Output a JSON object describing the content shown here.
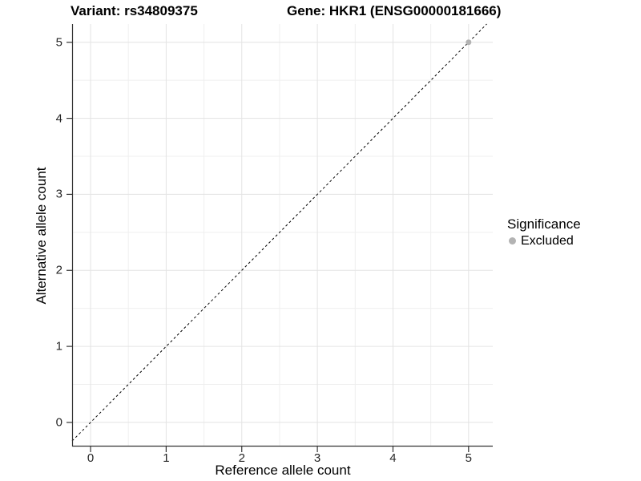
{
  "chart_data": {
    "type": "scatter",
    "title_left": "Variant: rs34809375",
    "title_right": "Gene: HKR1 (ENSG00000181666)",
    "xlabel": "Reference allele count",
    "ylabel": "Alternative allele count",
    "xticks": [
      0,
      1,
      2,
      3,
      4,
      5
    ],
    "yticks": [
      0,
      1,
      2,
      3,
      4,
      5
    ],
    "x_minor": [
      0.5,
      1.5,
      2.5,
      3.5,
      4.5
    ],
    "y_minor": [
      0.5,
      1.5,
      2.5,
      3.5,
      4.5
    ],
    "xlim": [
      -0.244,
      5.32
    ],
    "ylim": [
      -0.317,
      5.24
    ],
    "grid": true,
    "points": [
      {
        "x": 5,
        "y": 5,
        "series": "Excluded"
      }
    ],
    "reference_line": {
      "equation": "y = x",
      "style": "dashed",
      "color": "#000000"
    },
    "legend": {
      "title": "Significance",
      "position": "right",
      "items": [
        {
          "label": "Excluded",
          "color": "#b3b3b3"
        }
      ]
    },
    "colors": {
      "point": "#b3b3b3",
      "grid_major": "#e3e3e3",
      "grid_minor": "#efefef",
      "axis": "#333333"
    }
  }
}
